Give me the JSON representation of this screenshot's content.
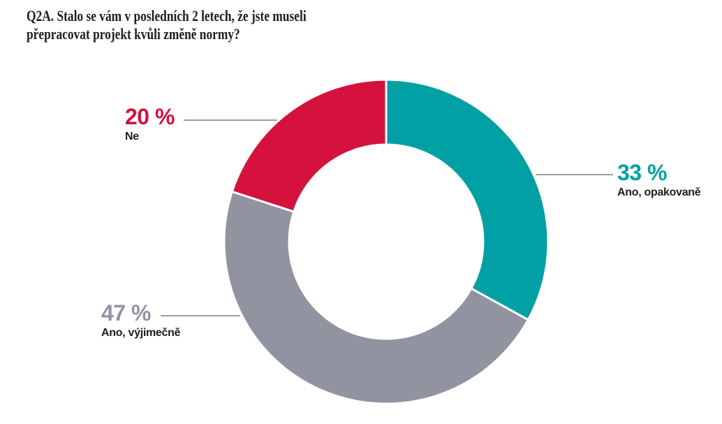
{
  "page": {
    "background": "#ffffff"
  },
  "header": {
    "title_line1": "Q2A. Stalo se vám v posledních 2 letech, že jste museli",
    "title_line2": "přepracovat projekt kvůli změně normy?"
  },
  "chart_data": {
    "type": "pie",
    "subtype": "donut",
    "title": "Q2A. Stalo se vám v posledních 2 letech, že jste museli přepracovat projekt kvůli změně normy?",
    "unit": "%",
    "start_angle_deg": 0,
    "direction": "clockwise",
    "inner_radius_ratio": 0.6,
    "legend_position": "callout-labels",
    "slices": [
      {
        "label": "Ano, opakovaně",
        "value": 33,
        "display": "33 %",
        "color": "#00A0A4"
      },
      {
        "label": "Ano, výjimečně",
        "value": 47,
        "display": "47 %",
        "color": "#9193A1"
      },
      {
        "label": "Ne",
        "value": 20,
        "display": "20 %",
        "color": "#D4123D"
      }
    ],
    "colors": {
      "title_text": "#1D1D1B",
      "label_text": "#1D1D1B",
      "leader_line": "#9C9C9C",
      "slice_separator": "#FFFFFF"
    }
  }
}
